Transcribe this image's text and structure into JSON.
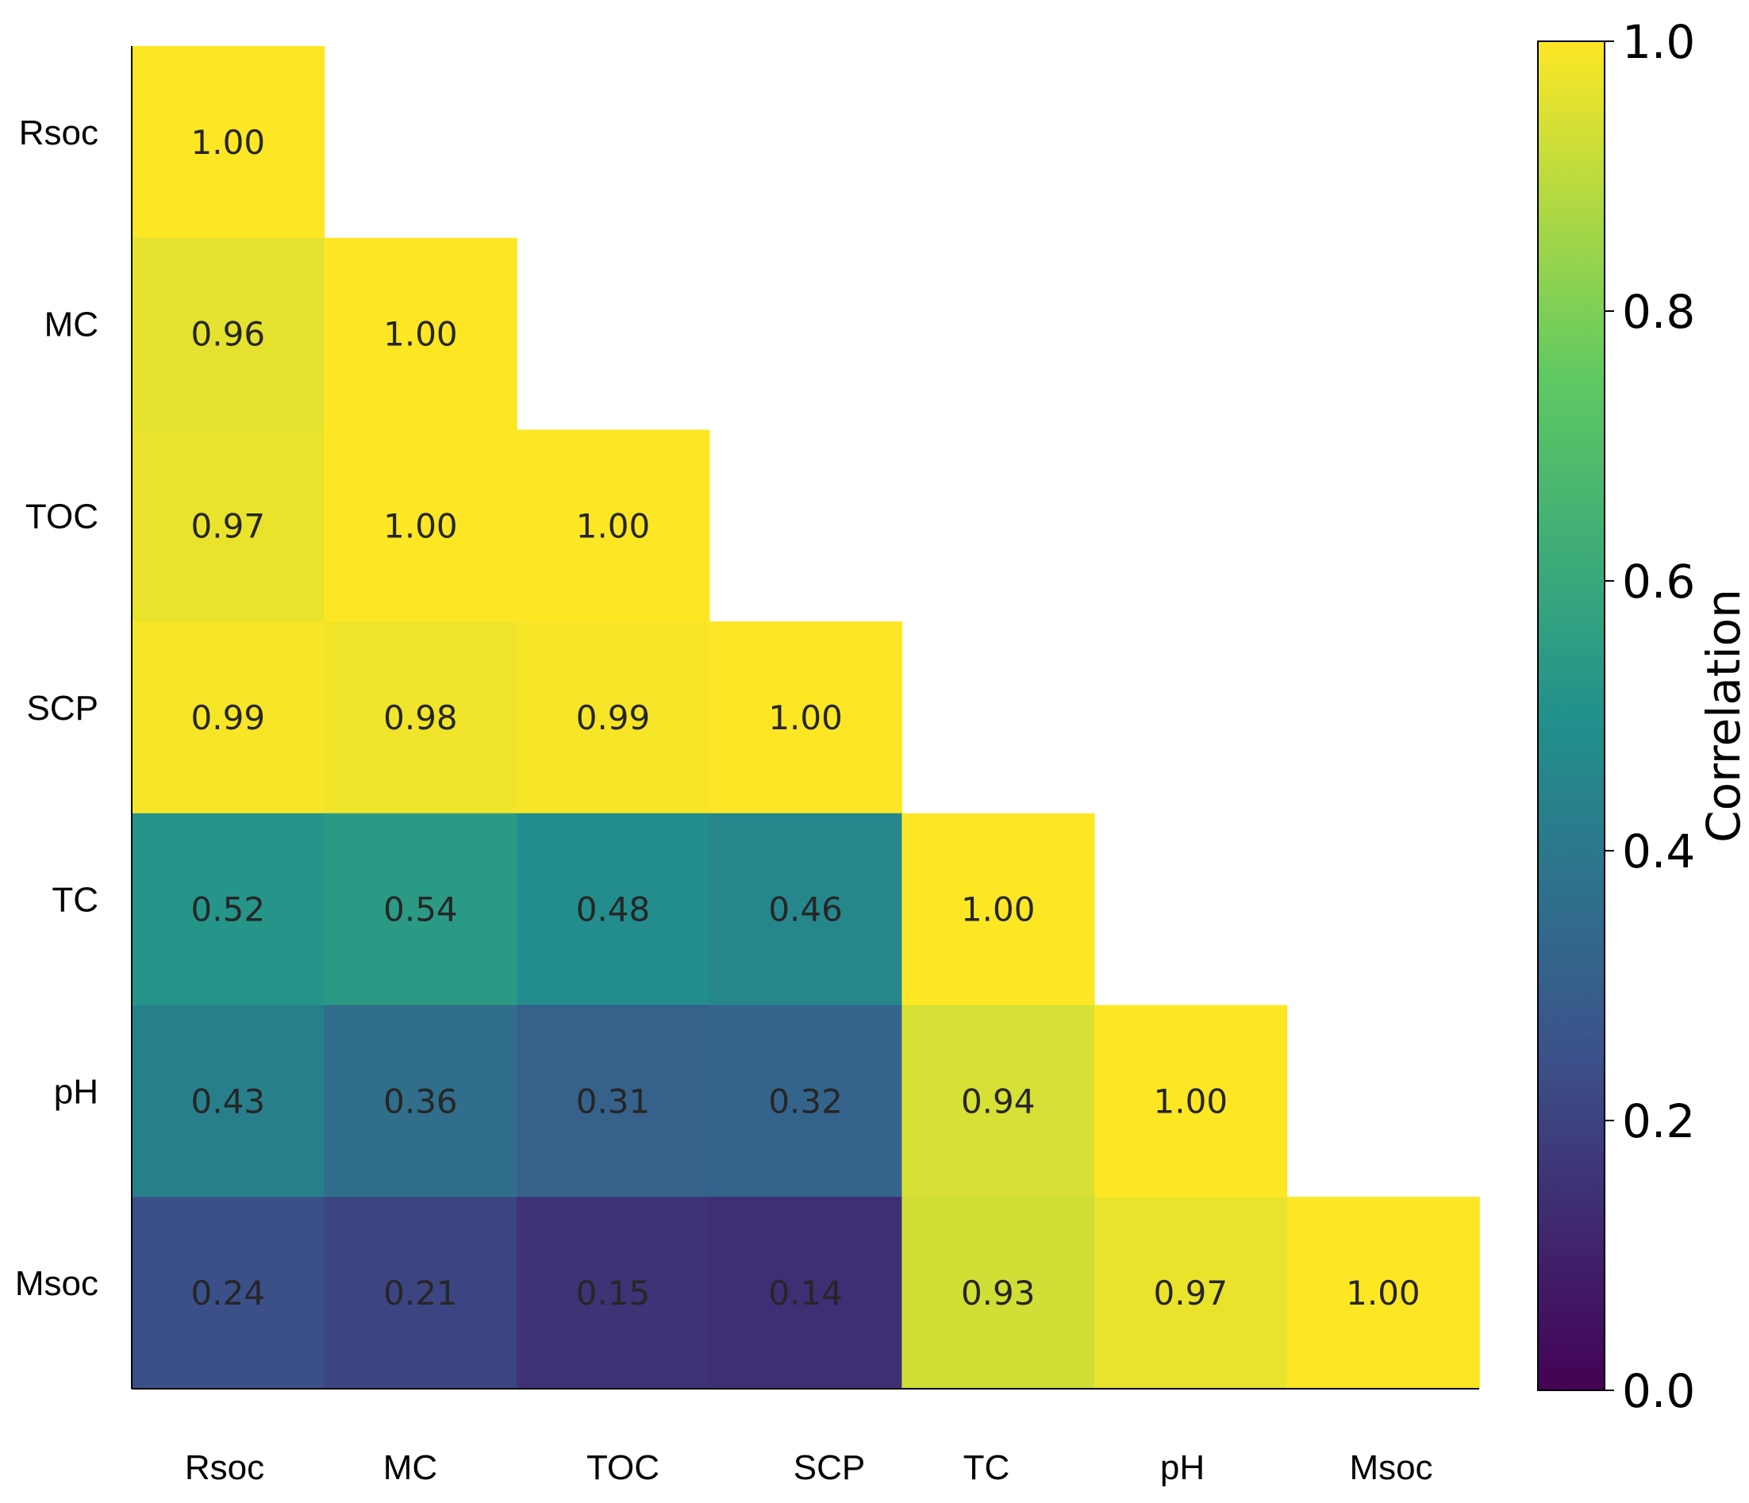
{
  "chart_data": {
    "type": "heatmap",
    "variant": "lower-triangular correlation matrix",
    "rows": [
      "Rsoc",
      "MC",
      "TOC",
      "SCP",
      "TC",
      "pH",
      "Msoc"
    ],
    "columns": [
      "Rsoc",
      "MC",
      "TOC",
      "SCP",
      "TC",
      "pH",
      "Msoc"
    ],
    "values": [
      [
        1.0,
        null,
        null,
        null,
        null,
        null,
        null
      ],
      [
        0.96,
        1.0,
        null,
        null,
        null,
        null,
        null
      ],
      [
        0.97,
        1.0,
        1.0,
        null,
        null,
        null,
        null
      ],
      [
        0.99,
        0.98,
        0.99,
        1.0,
        null,
        null,
        null
      ],
      [
        0.52,
        0.54,
        0.48,
        0.46,
        1.0,
        null,
        null
      ],
      [
        0.43,
        0.36,
        0.31,
        0.32,
        0.94,
        1.0,
        null
      ],
      [
        0.24,
        0.21,
        0.15,
        0.14,
        0.93,
        0.97,
        1.0
      ]
    ],
    "value_format": "2 decimals",
    "colormap": "viridis",
    "colormap_stops": [
      "#440154",
      "#3b528b",
      "#21918c",
      "#5ec962",
      "#fde725"
    ],
    "colorbar": {
      "label": "Correlation",
      "range": [
        0.0,
        1.0
      ],
      "ticks": [
        "0.0",
        "0.2",
        "0.4",
        "0.6",
        "0.8",
        "1.0"
      ],
      "placement": "right"
    },
    "grid": false,
    "legend": "none"
  }
}
